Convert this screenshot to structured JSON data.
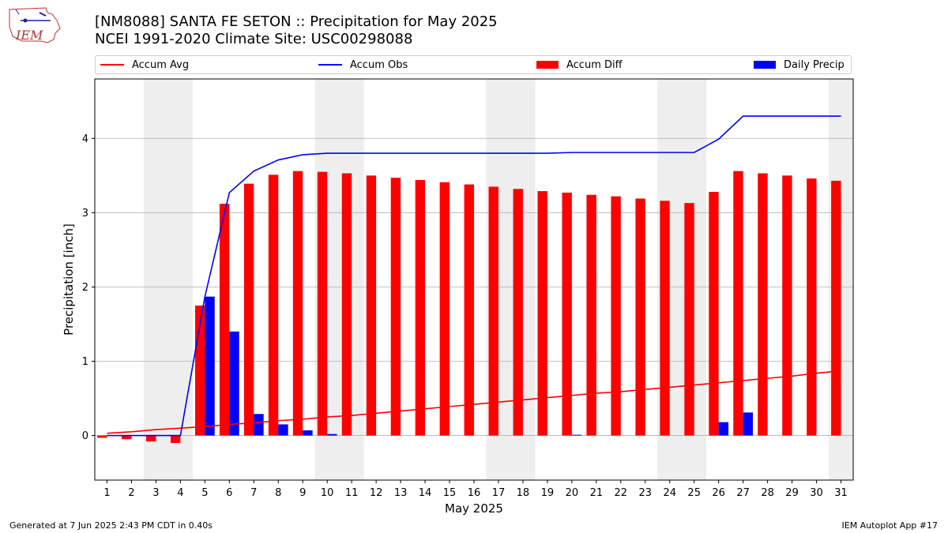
{
  "header": {
    "logo_text": "IEM",
    "title_line1": "[NM8088] SANTA FE SETON :: Precipitation for May 2025",
    "title_line2": "NCEI 1991-2020 Climate Site: USC00298088"
  },
  "legend": {
    "placement": "top",
    "items": [
      {
        "label": "Accum Avg",
        "kind": "line",
        "color": "#ff0000"
      },
      {
        "label": "Accum Obs",
        "kind": "line",
        "color": "#0000ff"
      },
      {
        "label": "Accum Diff",
        "kind": "bar",
        "color": "#ff0000"
      },
      {
        "label": "Daily Precip",
        "kind": "bar",
        "color": "#0000ff"
      }
    ]
  },
  "chart_data": {
    "type": "bar",
    "xlabel": "May 2025",
    "ylabel": "Precipitation [inch]",
    "xlim": [
      0.5,
      31.5
    ],
    "ylim": [
      -0.6,
      4.8
    ],
    "yticks": [
      0,
      1,
      2,
      3,
      4
    ],
    "grid": "horizontal",
    "weekend_shading": [
      [
        2.5,
        4.5
      ],
      [
        9.5,
        11.5
      ],
      [
        16.5,
        18.5
      ],
      [
        23.5,
        25.5
      ],
      [
        30.5,
        31.5
      ]
    ],
    "days": [
      1,
      2,
      3,
      4,
      5,
      6,
      7,
      8,
      9,
      10,
      11,
      12,
      13,
      14,
      15,
      16,
      17,
      18,
      19,
      20,
      21,
      22,
      23,
      24,
      25,
      26,
      27,
      28,
      29,
      30,
      31
    ],
    "series": [
      {
        "name": "Accum Avg",
        "kind": "line",
        "color": "#ff0000",
        "values": [
          0.03,
          0.05,
          0.08,
          0.1,
          0.12,
          0.15,
          0.17,
          0.2,
          0.22,
          0.25,
          0.27,
          0.3,
          0.33,
          0.36,
          0.39,
          0.42,
          0.45,
          0.48,
          0.51,
          0.54,
          0.57,
          0.59,
          0.62,
          0.65,
          0.68,
          0.71,
          0.74,
          0.77,
          0.8,
          0.84,
          0.87
        ]
      },
      {
        "name": "Accum Obs",
        "kind": "line",
        "color": "#0000ff",
        "values": [
          0.0,
          0.0,
          0.0,
          0.0,
          1.87,
          3.27,
          3.56,
          3.71,
          3.78,
          3.8,
          3.8,
          3.8,
          3.8,
          3.8,
          3.8,
          3.8,
          3.8,
          3.8,
          3.8,
          3.81,
          3.81,
          3.81,
          3.81,
          3.81,
          3.81,
          3.99,
          4.3,
          4.3,
          4.3,
          4.3,
          4.3
        ]
      },
      {
        "name": "Accum Diff",
        "kind": "bar",
        "color": "#ff0000",
        "values": [
          -0.03,
          -0.05,
          -0.08,
          -0.1,
          1.75,
          3.12,
          3.39,
          3.51,
          3.56,
          3.55,
          3.53,
          3.5,
          3.47,
          3.44,
          3.41,
          3.38,
          3.35,
          3.32,
          3.29,
          3.27,
          3.24,
          3.22,
          3.19,
          3.16,
          3.13,
          3.28,
          3.56,
          3.53,
          3.5,
          3.46,
          3.43
        ]
      },
      {
        "name": "Daily Precip",
        "kind": "bar",
        "color": "#0000ff",
        "values": [
          0.0,
          0.0,
          0.0,
          0.0,
          1.87,
          1.4,
          0.29,
          0.15,
          0.07,
          0.02,
          0.0,
          0.0,
          0.0,
          0.0,
          0.0,
          0.0,
          0.0,
          0.0,
          0.0,
          0.01,
          0.0,
          0.0,
          0.0,
          0.0,
          0.0,
          0.18,
          0.31,
          0.0,
          0.0,
          0.0,
          0.0
        ]
      }
    ]
  },
  "footer": {
    "left": "Generated at 7 Jun 2025 2:43 PM CDT in 0.40s",
    "right": "IEM Autoplot App #17"
  }
}
